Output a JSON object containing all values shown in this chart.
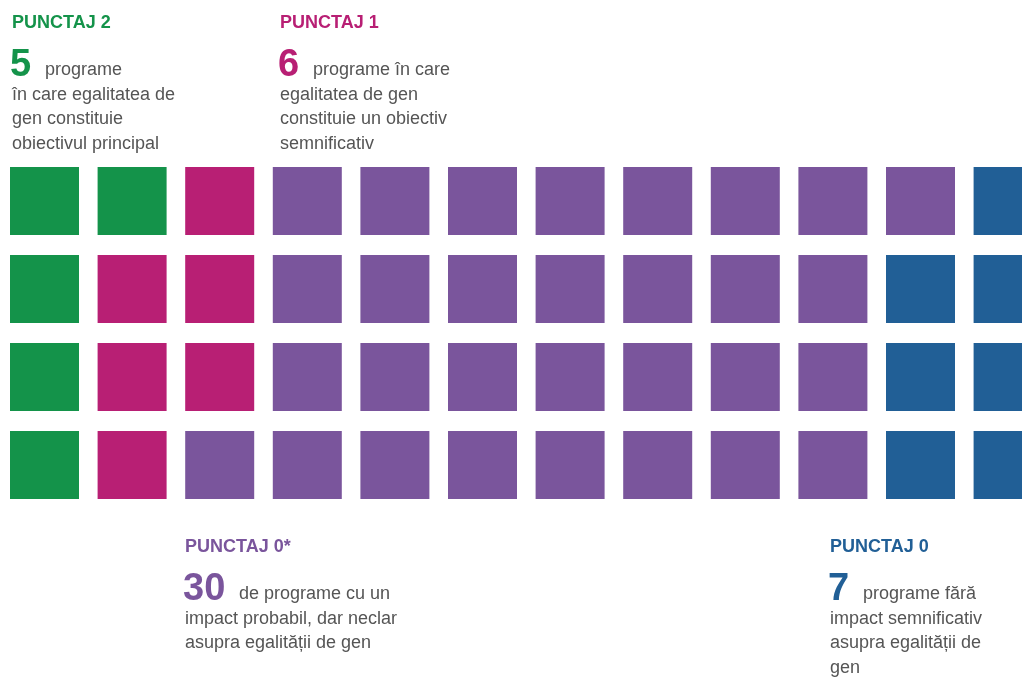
{
  "chart_data": {
    "type": "other",
    "categories": [
      "PUNCTAJ 2",
      "PUNCTAJ 1",
      "PUNCTAJ 0*",
      "PUNCTAJ 0"
    ],
    "values": [
      5,
      6,
      30,
      7
    ],
    "data_labels": true,
    "colors": [
      "#14934a",
      "#b81f74",
      "#7a559c",
      "#215f96"
    ],
    "annotations": [
      "programe în care egalitatea de gen constituie obiectivul principal",
      "programe în care egalitatea de gen constituie un obiectiv semnificativ",
      "de programe cu un impact probabil, dar neclar asupra egalității de gen",
      "programe fără impact semnificativ asupra egalității de gen"
    ]
  }
}
